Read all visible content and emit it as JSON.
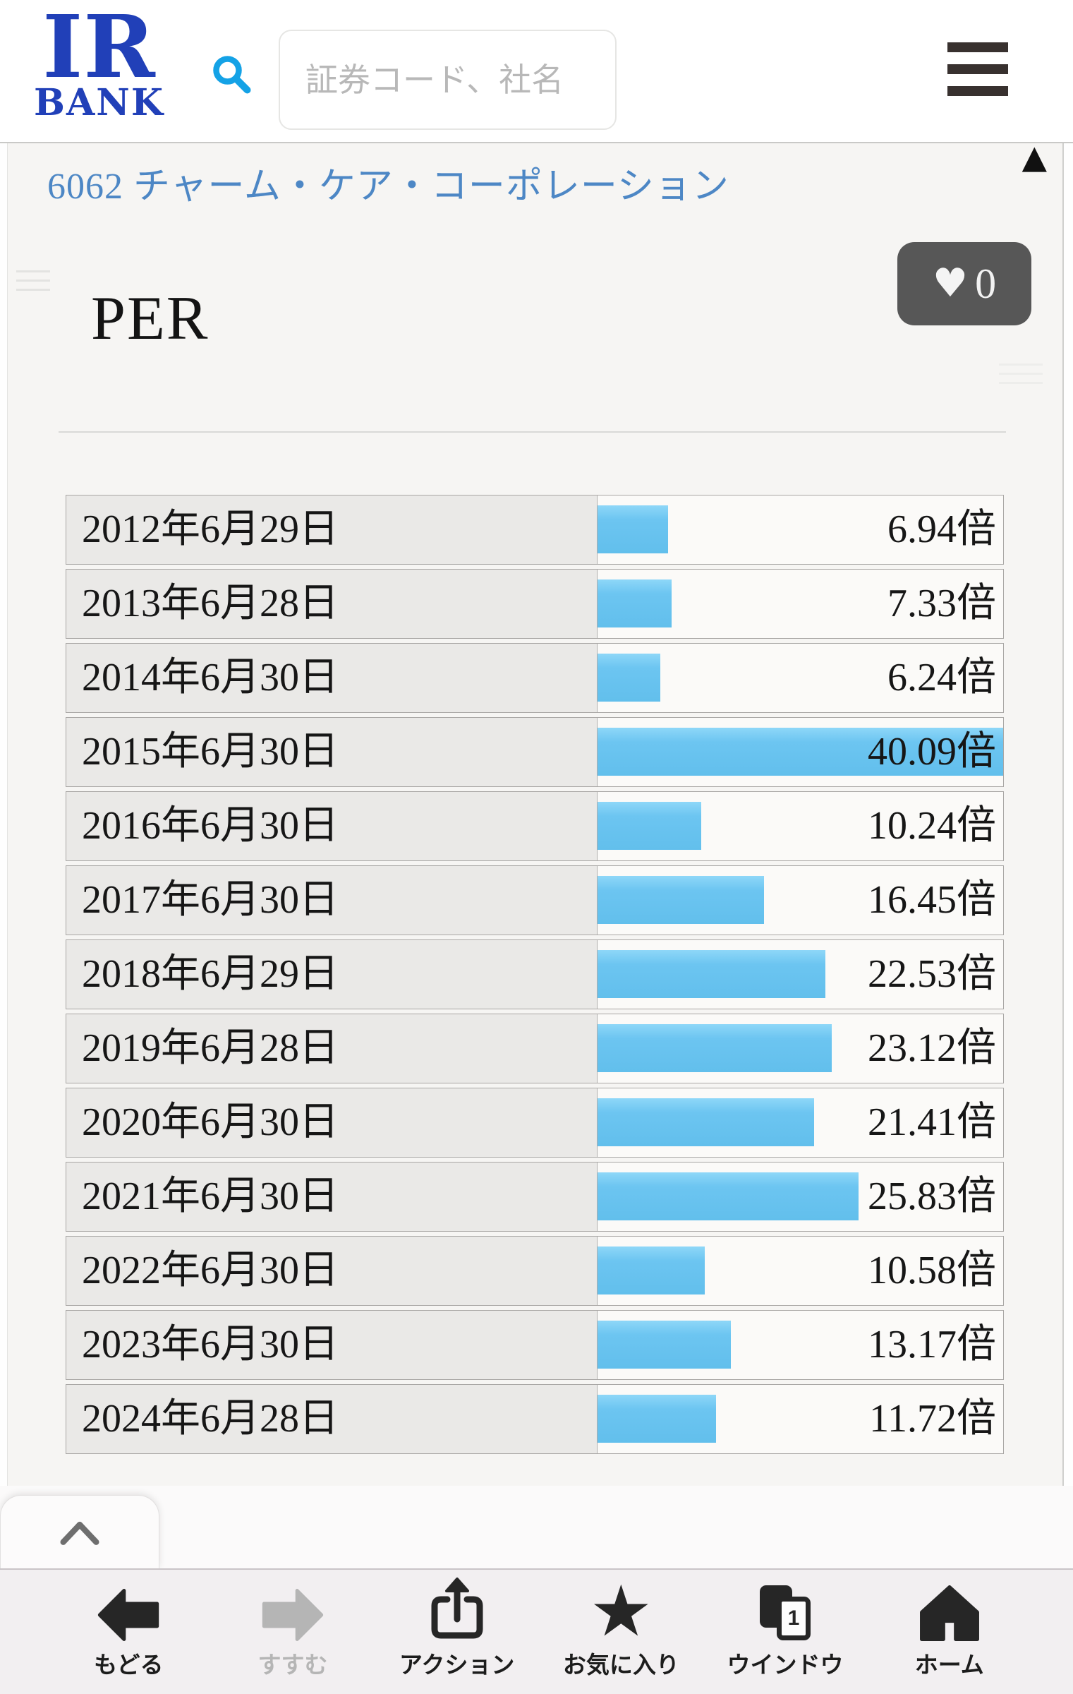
{
  "header": {
    "logo_line1": "IR",
    "logo_line2": "BANK",
    "search_placeholder": "証券コード、社名"
  },
  "page": {
    "company_link": "6062 チャーム・ケア・コーポレーション",
    "section_title": "PER",
    "favorite_count": "0"
  },
  "icons": {
    "heart": "♥",
    "star": "★",
    "scroll_top_triangle": "▲"
  },
  "chart_data": {
    "type": "bar",
    "title": "PER",
    "unit": "倍",
    "max_value": 40.09,
    "orientation": "horizontal",
    "bar_color": "#6fc7f2",
    "categories": [
      "2012年6月29日",
      "2013年6月28日",
      "2014年6月30日",
      "2015年6月30日",
      "2016年6月30日",
      "2017年6月30日",
      "2018年6月29日",
      "2019年6月28日",
      "2020年6月30日",
      "2021年6月30日",
      "2022年6月30日",
      "2023年6月30日",
      "2024年6月28日"
    ],
    "values": [
      6.94,
      7.33,
      6.24,
      40.09,
      10.24,
      16.45,
      22.53,
      23.12,
      21.41,
      25.83,
      10.58,
      13.17,
      11.72
    ],
    "value_labels": [
      "6.94倍",
      "7.33倍",
      "6.24倍",
      "40.09倍",
      "10.24倍",
      "16.45倍",
      "22.53倍",
      "23.12倍",
      "21.41倍",
      "25.83倍",
      "10.58倍",
      "13.17倍",
      "11.72倍"
    ]
  },
  "toolbar": {
    "items": [
      {
        "label": "もどる",
        "icon": "back-arrow-icon",
        "name": "back-button",
        "enabled": true
      },
      {
        "label": "すすむ",
        "icon": "forward-arrow-icon",
        "name": "forward-button",
        "enabled": false
      },
      {
        "label": "アクション",
        "icon": "share-icon",
        "name": "action-button",
        "enabled": true
      },
      {
        "label": "お気に入り",
        "icon": "star-icon",
        "name": "favorites-button",
        "enabled": true
      },
      {
        "label": "ウインドウ",
        "icon": "windows-icon",
        "name": "windows-button",
        "enabled": true,
        "badge": "1"
      },
      {
        "label": "ホーム",
        "icon": "home-icon",
        "name": "home-button",
        "enabled": true
      }
    ]
  },
  "colors": {
    "logo_blue": "#2140b8",
    "link_blue": "#4d87c5",
    "bar_blue": "#6fc7f2",
    "search_icon_blue": "#14a2e6",
    "favorite_button_bg": "#575757",
    "toolbar_bg": "#f2eff1",
    "content_bg": "#f6f5f3",
    "date_cell_bg": "#eae9e7"
  }
}
